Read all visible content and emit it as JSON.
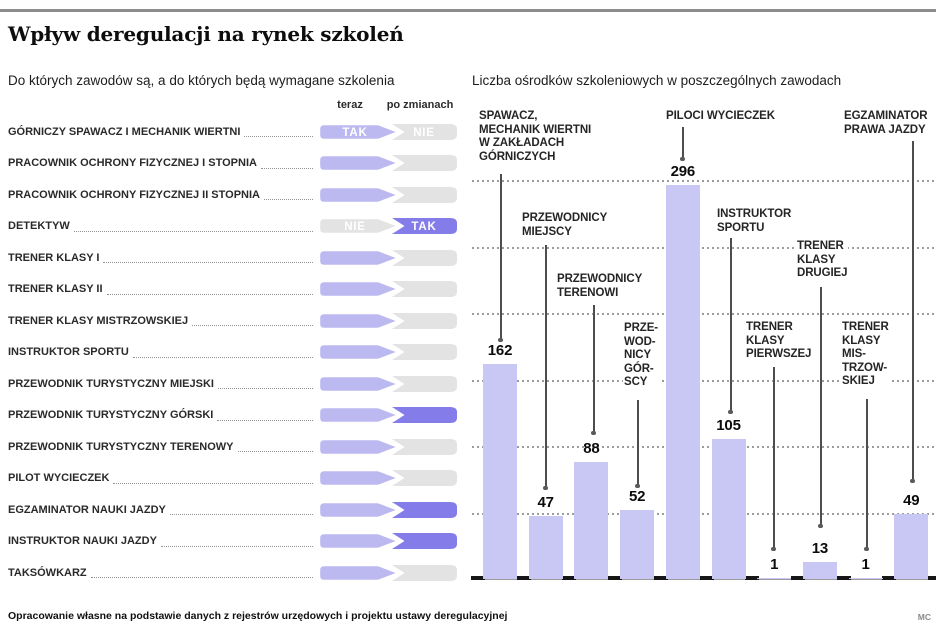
{
  "page": {
    "title": "Wpływ deregulacji na rynek szkoleń",
    "footer": "Opracowanie własne na podstawie danych z rejestrów urzędowych i projektu ustawy deregulacyjnej",
    "credit": "MC"
  },
  "left_panel": {
    "subtitle": "Do których zawodów są, a do których będą wymagane szkolenia",
    "columns": {
      "now": "teraz",
      "after": "po zmianach"
    },
    "rows": [
      {
        "label": "GÓRNICZY SPAWACZ I MECHANIK WIERTNI",
        "now": {
          "state": "light",
          "text": "TAK"
        },
        "after": {
          "state": "gray",
          "text": "NIE"
        }
      },
      {
        "label": "PRACOWNIK OCHRONY FIZYCZNEJ I STOPNIA",
        "now": {
          "state": "light",
          "text": ""
        },
        "after": {
          "state": "gray",
          "text": ""
        }
      },
      {
        "label": "PRACOWNIK OCHRONY FIZYCZNEJ II STOPNIA",
        "now": {
          "state": "light",
          "text": ""
        },
        "after": {
          "state": "gray",
          "text": ""
        }
      },
      {
        "label": "DETEKTYW",
        "now": {
          "state": "gray",
          "text": "NIE"
        },
        "after": {
          "state": "dark",
          "text": "TAK"
        }
      },
      {
        "label": "TRENER KLASY I",
        "now": {
          "state": "light",
          "text": ""
        },
        "after": {
          "state": "gray",
          "text": ""
        }
      },
      {
        "label": "TRENER KLASY II",
        "now": {
          "state": "light",
          "text": ""
        },
        "after": {
          "state": "gray",
          "text": ""
        }
      },
      {
        "label": "TRENER KLASY MISTRZOWSKIEJ",
        "now": {
          "state": "light",
          "text": ""
        },
        "after": {
          "state": "gray",
          "text": ""
        }
      },
      {
        "label": "INSTRUKTOR SPORTU",
        "now": {
          "state": "light",
          "text": ""
        },
        "after": {
          "state": "gray",
          "text": ""
        }
      },
      {
        "label": "PRZEWODNIK TURYSTYCZNY MIEJSKI",
        "now": {
          "state": "light",
          "text": ""
        },
        "after": {
          "state": "gray",
          "text": ""
        }
      },
      {
        "label": "PRZEWODNIK TURYSTYCZNY GÓRSKI",
        "now": {
          "state": "light",
          "text": ""
        },
        "after": {
          "state": "dark",
          "text": ""
        }
      },
      {
        "label": "PRZEWODNIK TURYSTYCZNY TERENOWY",
        "now": {
          "state": "light",
          "text": ""
        },
        "after": {
          "state": "gray",
          "text": ""
        }
      },
      {
        "label": "PILOT WYCIECZEK",
        "now": {
          "state": "light",
          "text": ""
        },
        "after": {
          "state": "gray",
          "text": ""
        }
      },
      {
        "label": "EGZAMINATOR NAUKI JAZDY",
        "now": {
          "state": "light",
          "text": ""
        },
        "after": {
          "state": "dark",
          "text": ""
        }
      },
      {
        "label": "INSTRUKTOR NAUKI JAZDY",
        "now": {
          "state": "light",
          "text": ""
        },
        "after": {
          "state": "dark",
          "text": ""
        }
      },
      {
        "label": "TAKSÓWKARZ",
        "now": {
          "state": "light",
          "text": ""
        },
        "after": {
          "state": "gray",
          "text": ""
        }
      }
    ]
  },
  "chart_data": {
    "type": "bar",
    "title": "Liczba ośrodków szkoleniowych w poszczególnych zawodach",
    "categories": [
      "Spawacz, mechanik wiertni w zakładach górniczych",
      "Przewodnicy miejscy",
      "Przewodnicy terenowi",
      "Przewodnicy górscy",
      "Piloci wycieczek",
      "Instruktor sportu",
      "Trener klasy pierwszej",
      "Trener klasy drugiej",
      "Trener klasy mistrzowskiej",
      "Egzaminator prawa jazdy"
    ],
    "values": [
      162,
      47,
      88,
      52,
      296,
      105,
      1,
      13,
      1,
      49
    ],
    "bar_labels": [
      [
        "SPAWACZ,",
        "MECHANIK WIERTNI",
        "W ZAKŁADACH",
        "GÓRNICZYCH"
      ],
      [
        "PRZEWODNICY",
        "MIEJSCY"
      ],
      [
        "PRZEWODNICY",
        "TERENOWI"
      ],
      [
        "PRZE-",
        "WOD-",
        "NICY",
        "GÓR-",
        "SCY"
      ],
      [
        "PILOCI WYCIECZEK"
      ],
      [
        "INSTRUKTOR",
        "SPORTU"
      ],
      [
        "TRENER",
        "KLASY",
        "PIERWSZEJ"
      ],
      [
        "TRENER",
        "KLASY",
        "DRUGIEJ"
      ],
      [
        "TRENER",
        "KLASY",
        "MIS-",
        "TRZOW-",
        "SKIEJ"
      ],
      [
        "EGZAMINATOR",
        "PRAWA JAZDY"
      ]
    ],
    "xlabel": "",
    "ylabel": "",
    "ylim": [
      0,
      300
    ],
    "gridline_step": 50,
    "grid": "horizontal dotted",
    "legend_position": "none",
    "bar_color": "#c9c7f3"
  },
  "colors": {
    "arrow_light_purple": "#bcb8f0",
    "arrow_dark_purple": "#847de9",
    "arrow_gray": "#e3e3e3",
    "bar": "#c9c7f3"
  }
}
